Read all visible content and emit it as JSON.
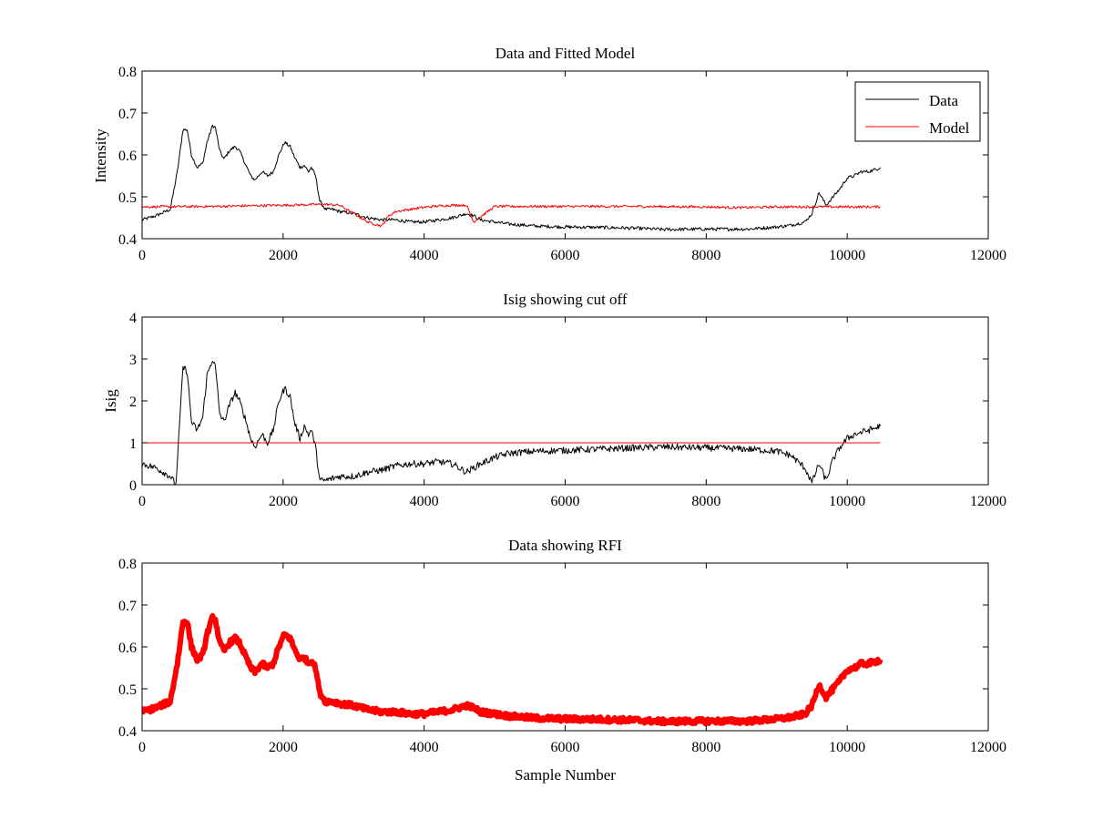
{
  "chart_data": [
    {
      "type": "line",
      "title": "Data and Fitted Model",
      "xlabel": "",
      "ylabel": "Intensity",
      "xlim": [
        0,
        12000
      ],
      "ylim": [
        0.4,
        0.8
      ],
      "xticks": [
        "0",
        "2000",
        "4000",
        "6000",
        "8000",
        "10000",
        "12000"
      ],
      "yticks": [
        "0.4",
        "0.5",
        "0.6",
        "0.7",
        "0.8"
      ],
      "legend": {
        "position": "top-right",
        "entries": [
          "Data",
          "Model"
        ]
      },
      "series": [
        {
          "name": "Data",
          "color": "#000000",
          "x": [
            0,
            200,
            400,
            500,
            580,
            640,
            700,
            780,
            860,
            920,
            1000,
            1040,
            1100,
            1160,
            1240,
            1320,
            1380,
            1460,
            1540,
            1600,
            1700,
            1780,
            1860,
            1940,
            2020,
            2100,
            2160,
            2240,
            2300,
            2360,
            2400,
            2460,
            2520,
            2600,
            2700,
            2800,
            3000,
            3200,
            3400,
            3600,
            3800,
            4000,
            4200,
            4400,
            4600,
            4700,
            4800,
            5000,
            5200,
            5600,
            6000,
            6500,
            7000,
            7400,
            8000,
            8600,
            9000,
            9200,
            9400,
            9500,
            9600,
            9700,
            9800,
            9900,
            10000,
            10100,
            10200,
            10300,
            10400,
            10470
          ],
          "y": [
            0.445,
            0.455,
            0.47,
            0.56,
            0.66,
            0.66,
            0.6,
            0.57,
            0.58,
            0.63,
            0.67,
            0.665,
            0.61,
            0.59,
            0.61,
            0.62,
            0.61,
            0.58,
            0.55,
            0.54,
            0.56,
            0.55,
            0.56,
            0.6,
            0.63,
            0.62,
            0.595,
            0.57,
            0.575,
            0.56,
            0.57,
            0.55,
            0.49,
            0.47,
            0.47,
            0.465,
            0.46,
            0.45,
            0.445,
            0.445,
            0.44,
            0.44,
            0.445,
            0.45,
            0.46,
            0.455,
            0.445,
            0.44,
            0.435,
            0.43,
            0.428,
            0.427,
            0.425,
            0.422,
            0.423,
            0.423,
            0.428,
            0.432,
            0.44,
            0.46,
            0.51,
            0.48,
            0.5,
            0.52,
            0.545,
            0.55,
            0.56,
            0.56,
            0.565,
            0.57
          ]
        },
        {
          "name": "Model",
          "color": "#ff0000",
          "x": [
            0,
            1000,
            2000,
            2600,
            2800,
            3000,
            3200,
            3400,
            3500,
            3600,
            3800,
            4000,
            4200,
            4400,
            4600,
            4700,
            5000,
            7000,
            8000,
            8500,
            9000,
            10470
          ],
          "y": [
            0.476,
            0.477,
            0.48,
            0.482,
            0.48,
            0.46,
            0.44,
            0.43,
            0.455,
            0.465,
            0.47,
            0.475,
            0.478,
            0.48,
            0.48,
            0.44,
            0.477,
            0.477,
            0.476,
            0.474,
            0.476,
            0.476
          ]
        }
      ]
    },
    {
      "type": "line",
      "title": "Isig showing cut off",
      "xlabel": "",
      "ylabel": "Isig",
      "xlim": [
        0,
        12000
      ],
      "ylim": [
        0,
        4
      ],
      "xticks": [
        "0",
        "2000",
        "4000",
        "6000",
        "8000",
        "10000",
        "12000"
      ],
      "yticks": [
        "0",
        "1",
        "2",
        "3",
        "4"
      ],
      "series": [
        {
          "color": "#000000",
          "x": [
            0,
            200,
            400,
            480,
            580,
            640,
            700,
            780,
            860,
            920,
            1000,
            1040,
            1100,
            1160,
            1240,
            1320,
            1380,
            1460,
            1540,
            1600,
            1700,
            1780,
            1860,
            1940,
            2020,
            2100,
            2160,
            2240,
            2300,
            2360,
            2400,
            2460,
            2520,
            2600,
            2800,
            3000,
            3200,
            3400,
            3600,
            3800,
            4000,
            4200,
            4400,
            4600,
            4700,
            4800,
            5000,
            5200,
            5600,
            6000,
            6500,
            7000,
            7400,
            8000,
            8600,
            9000,
            9200,
            9400,
            9500,
            9600,
            9700,
            9800,
            9900,
            10000,
            10100,
            10200,
            10300,
            10400,
            10470
          ],
          "y": [
            0.5,
            0.4,
            0.2,
            0.0,
            2.8,
            2.7,
            1.5,
            1.3,
            1.6,
            2.6,
            3.0,
            2.8,
            1.7,
            1.5,
            1.9,
            2.2,
            2.0,
            1.6,
            1.1,
            0.9,
            1.2,
            1.0,
            1.3,
            2.0,
            2.3,
            2.1,
            1.5,
            1.1,
            1.4,
            1.2,
            1.3,
            0.9,
            0.1,
            0.1,
            0.2,
            0.2,
            0.3,
            0.35,
            0.45,
            0.5,
            0.5,
            0.55,
            0.5,
            0.3,
            0.4,
            0.5,
            0.65,
            0.75,
            0.8,
            0.82,
            0.85,
            0.88,
            0.9,
            0.88,
            0.85,
            0.8,
            0.7,
            0.4,
            0.05,
            0.5,
            0.1,
            0.6,
            0.9,
            1.1,
            1.2,
            1.25,
            1.3,
            1.35,
            1.4
          ]
        },
        {
          "color": "#ff0000",
          "x": [
            0,
            10470
          ],
          "y": [
            1,
            1
          ]
        }
      ]
    },
    {
      "type": "line",
      "title": "Data showing RFI",
      "xlabel": "Sample Number",
      "ylabel": "",
      "xlim": [
        0,
        12000
      ],
      "ylim": [
        0.4,
        0.8
      ],
      "xticks": [
        "0",
        "2000",
        "4000",
        "6000",
        "8000",
        "10000",
        "12000"
      ],
      "yticks": [
        "0.4",
        "0.5",
        "0.6",
        "0.7",
        "0.8"
      ],
      "series": [
        {
          "color": "#ff0000",
          "x": [
            0,
            200,
            400,
            500,
            580,
            640,
            700,
            780,
            860,
            920,
            1000,
            1040,
            1100,
            1160,
            1240,
            1320,
            1380,
            1460,
            1540,
            1600,
            1700,
            1780,
            1860,
            1940,
            2020,
            2100,
            2160,
            2240,
            2300,
            2360,
            2400,
            2460,
            2520,
            2600,
            2700,
            2800,
            3000,
            3200,
            3400,
            3600,
            3800,
            4000,
            4200,
            4400,
            4600,
            4700,
            4800,
            5000,
            5200,
            5600,
            6000,
            6500,
            7000,
            7400,
            8000,
            8600,
            9000,
            9200,
            9400,
            9500,
            9600,
            9700,
            9800,
            9900,
            10000,
            10100,
            10200,
            10300,
            10400,
            10470
          ],
          "y": [
            0.445,
            0.455,
            0.47,
            0.56,
            0.66,
            0.66,
            0.6,
            0.57,
            0.58,
            0.63,
            0.67,
            0.665,
            0.61,
            0.59,
            0.61,
            0.62,
            0.61,
            0.58,
            0.55,
            0.54,
            0.56,
            0.55,
            0.56,
            0.6,
            0.63,
            0.62,
            0.595,
            0.57,
            0.575,
            0.56,
            0.57,
            0.55,
            0.49,
            0.47,
            0.47,
            0.465,
            0.46,
            0.45,
            0.445,
            0.445,
            0.44,
            0.44,
            0.445,
            0.45,
            0.46,
            0.455,
            0.445,
            0.44,
            0.435,
            0.43,
            0.428,
            0.427,
            0.425,
            0.422,
            0.423,
            0.423,
            0.428,
            0.432,
            0.44,
            0.46,
            0.51,
            0.48,
            0.5,
            0.52,
            0.545,
            0.55,
            0.56,
            0.56,
            0.565,
            0.57
          ]
        }
      ]
    }
  ]
}
